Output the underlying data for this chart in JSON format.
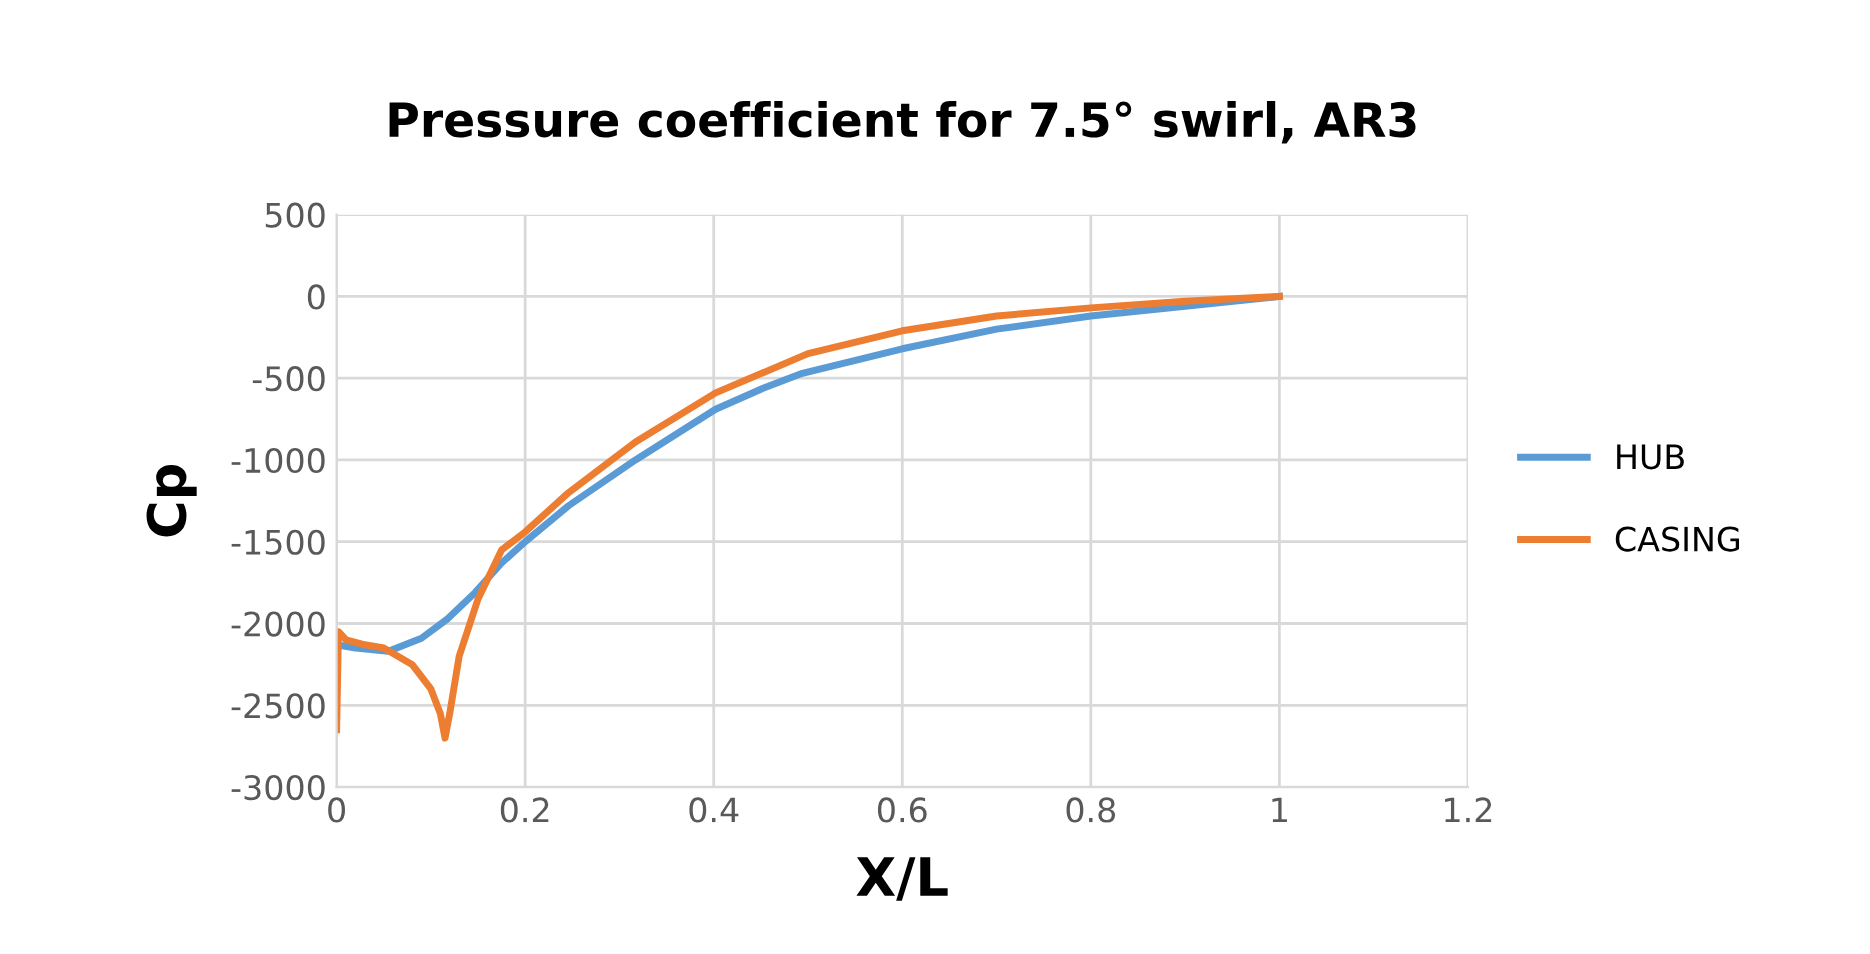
{
  "chart_data": {
    "type": "line",
    "title": "Pressure coefficient for 7.5° swirl, AR3",
    "xlabel": "X/L",
    "ylabel": "Cp",
    "xlim": [
      0,
      1.2
    ],
    "xticks": [
      0,
      0.2,
      0.4,
      0.6,
      0.8,
      1,
      1.2
    ],
    "ylim": [
      -3000,
      500
    ],
    "yticks": [
      -3000,
      -2500,
      -2000,
      -1500,
      -1000,
      -500,
      0,
      500
    ],
    "grid": true,
    "legend": "right",
    "marker": "none",
    "line_style": "solid",
    "series": [
      {
        "name": "HUB",
        "color": "#5b9bd5",
        "x": [
          0,
          0.02,
          0.055,
          0.09,
          0.118,
          0.147,
          0.175,
          0.2,
          0.246,
          0.317,
          0.402,
          0.453,
          0.494,
          0.6,
          0.7,
          0.8,
          0.9,
          1
        ],
        "values": [
          -2130,
          -2150,
          -2170,
          -2090,
          -1970,
          -1810,
          -1630,
          -1500,
          -1280,
          -1000,
          -690,
          -560,
          -470,
          -320,
          -200,
          -120,
          -60,
          0
        ]
      },
      {
        "name": "CASING",
        "color": "#ed7d31",
        "x": [
          0,
          0.002,
          0.01,
          0.03,
          0.05,
          0.08,
          0.1,
          0.11,
          0.115,
          0.12,
          0.13,
          0.15,
          0.175,
          0.2,
          0.246,
          0.317,
          0.402,
          0.5,
          0.6,
          0.7,
          0.8,
          0.9,
          1
        ],
        "values": [
          -2650,
          -2050,
          -2100,
          -2130,
          -2150,
          -2250,
          -2400,
          -2550,
          -2700,
          -2550,
          -2200,
          -1850,
          -1550,
          -1440,
          -1200,
          -890,
          -590,
          -350,
          -210,
          -120,
          -70,
          -30,
          0
        ]
      }
    ]
  }
}
